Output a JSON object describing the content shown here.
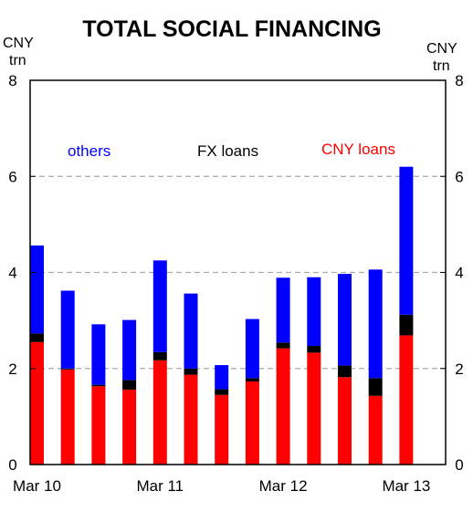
{
  "chart_data": {
    "type": "bar",
    "stacked": true,
    "title": "TOTAL SOCIAL FINANCING",
    "y_unit_left": [
      "CNY",
      "trn"
    ],
    "y_unit_right": [
      "CNY",
      "trn"
    ],
    "ylim": [
      0,
      8
    ],
    "yticks": [
      "0",
      "2",
      "4",
      "6",
      "8"
    ],
    "grid": "horizontal dashed",
    "x_tick_labels": [
      "Mar 10",
      "Mar 11",
      "Mar 12",
      "Mar 13"
    ],
    "x_tick_label_positions": [
      0,
      4,
      8,
      12
    ],
    "categories": [
      "Mar 10",
      "Jun 10",
      "Sep 10",
      "Dec 10",
      "Mar 11",
      "Jun 11",
      "Sep 11",
      "Dec 11",
      "Mar 12",
      "Jun 12",
      "Sep 12",
      "Dec 12",
      "Mar 13"
    ],
    "series": [
      {
        "name": "CNY loans",
        "color": "#ff0000",
        "values": [
          2.55,
          1.98,
          1.63,
          1.56,
          2.17,
          1.87,
          1.45,
          1.73,
          2.42,
          2.33,
          1.82,
          1.43,
          2.69
        ]
      },
      {
        "name": "FX loans",
        "color": "#000000",
        "values": [
          0.18,
          0.02,
          0.03,
          0.2,
          0.17,
          0.13,
          0.12,
          0.07,
          0.12,
          0.14,
          0.24,
          0.37,
          0.43
        ]
      },
      {
        "name": "others",
        "color": "#0000ff",
        "values": [
          1.83,
          1.62,
          1.26,
          1.25,
          1.91,
          1.56,
          0.5,
          1.23,
          1.35,
          1.43,
          1.91,
          2.26,
          3.08
        ]
      }
    ],
    "legend_colors": {
      "others": "#0000ff",
      "fx": "#000000",
      "cny": "#ff0000"
    }
  }
}
